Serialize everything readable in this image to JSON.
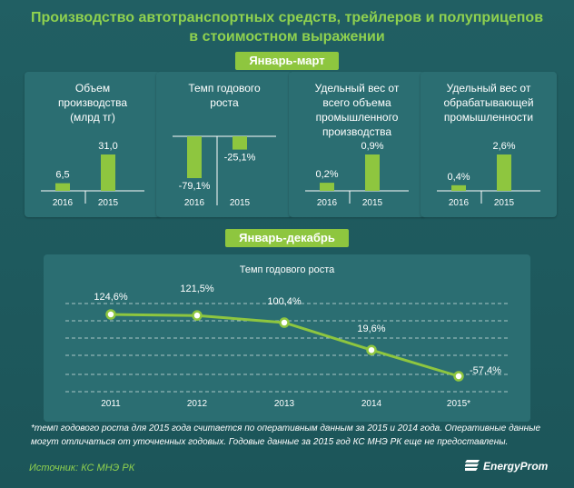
{
  "header": {
    "title_line1": "Производство  автотранспортных  средств, трейлеров и полуприцепов",
    "title_line2": "в стоимостном  выражении"
  },
  "period1": "Январь-март",
  "period2": "Январь-декабрь",
  "chart_data": [
    {
      "type": "bar",
      "title": "Объем\nпроизводства\n(млрд тг)",
      "categories": [
        "2016",
        "2015"
      ],
      "values": [
        6.5,
        31.0
      ],
      "labels": [
        "6,5",
        "31,0"
      ],
      "ylim": [
        0,
        31.0
      ]
    },
    {
      "type": "bar",
      "title": "Темп годового\nроста",
      "categories": [
        "2016",
        "2015"
      ],
      "values": [
        -79.1,
        -25.1
      ],
      "labels": [
        "-79,1%",
        "-25,1%"
      ],
      "ylim": [
        -79.1,
        0
      ]
    },
    {
      "type": "bar",
      "title": "Удельный вес от\nвсего объема\nпромышленного\nпроизводства",
      "categories": [
        "2016",
        "2015"
      ],
      "values": [
        0.2,
        0.9
      ],
      "labels": [
        "0,2%",
        "0,9%"
      ],
      "ylim": [
        0,
        0.9
      ]
    },
    {
      "type": "bar",
      "title": "Удельный вес от\nобрабатывающей\nпромышленности",
      "categories": [
        "2016",
        "2015"
      ],
      "values": [
        0.4,
        2.6
      ],
      "labels": [
        "0,4%",
        "2,6%"
      ],
      "ylim": [
        0,
        2.6
      ]
    },
    {
      "type": "line",
      "title": "Темп годового роста",
      "categories": [
        "2011",
        "2012",
        "2013",
        "2014",
        "2015*"
      ],
      "values": [
        124.6,
        121.5,
        100.4,
        19.6,
        -57.4
      ],
      "labels": [
        "124,6%",
        "121,5%",
        "100,4%",
        "19,6%",
        "-57,4%"
      ],
      "ylim": [
        -80,
        150
      ]
    }
  ],
  "footnote": "*темп годового роста для 2015 года считается по оперативным данным за 2015 и 2014 года. Оперативные данные могут отличаться от уточненных годовых. Годовые данные за 2015 год КС МНЭ РК еще не предоставлены.",
  "source": "Источник: КС МНЭ РК",
  "brand": "EnergyProm",
  "colors": {
    "bar": "#8ec63f",
    "line": "#8ec63f",
    "panel": "#2b6e72",
    "background": "#1e5a5e",
    "title": "#8fd14f"
  }
}
